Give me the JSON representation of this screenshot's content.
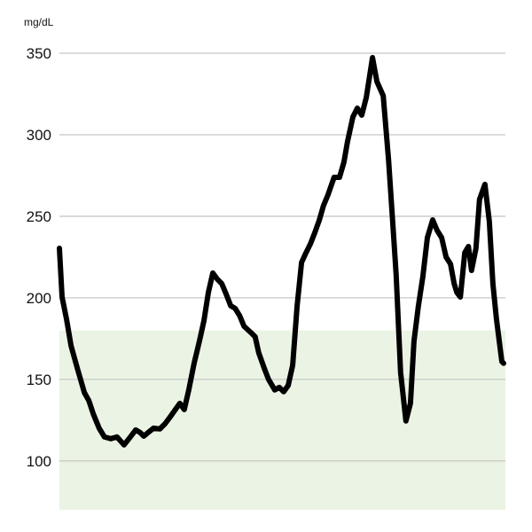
{
  "chart_data": {
    "type": "line",
    "title": "",
    "ylabel": "mg/dL",
    "xlabel": "",
    "ylim": [
      70,
      350
    ],
    "xlim": [
      0,
      100
    ],
    "yticks": [
      100,
      150,
      200,
      250,
      300,
      350
    ],
    "grid": true,
    "target_range": {
      "low": 70,
      "high": 180,
      "color": "#ebf4e4"
    },
    "line_color": "#000000",
    "gridline_color": "#c8c8c8",
    "series": [
      {
        "name": "glucose",
        "points": [
          [
            0,
            230.4
          ],
          [
            0.6,
            200.5
          ],
          [
            1.6,
            187
          ],
          [
            2.6,
            170.7
          ],
          [
            4.0,
            157
          ],
          [
            5.6,
            141.8
          ],
          [
            6.6,
            137
          ],
          [
            7.6,
            128.8
          ],
          [
            8.9,
            120.1
          ],
          [
            10.1,
            114.7
          ],
          [
            11.5,
            113.6
          ],
          [
            12.9,
            114.7
          ],
          [
            14.5,
            109.8
          ],
          [
            15.9,
            114.7
          ],
          [
            17.1,
            119
          ],
          [
            18.1,
            117.4
          ],
          [
            18.9,
            115.2
          ],
          [
            19.9,
            117.4
          ],
          [
            21.1,
            120.1
          ],
          [
            22.5,
            119.6
          ],
          [
            23.7,
            122.8
          ],
          [
            24.9,
            127.2
          ],
          [
            26.0,
            131.5
          ],
          [
            27.0,
            135.3
          ],
          [
            28.0,
            131.5
          ],
          [
            29.0,
            143.5
          ],
          [
            30.2,
            159.8
          ],
          [
            31.4,
            173.4
          ],
          [
            32.4,
            185.9
          ],
          [
            33.4,
            203.3
          ],
          [
            34.4,
            215.2
          ],
          [
            35.4,
            211.4
          ],
          [
            36.4,
            208.7
          ],
          [
            37.4,
            202.2
          ],
          [
            38.4,
            195.1
          ],
          [
            39.4,
            193.5
          ],
          [
            40.4,
            189.1
          ],
          [
            41.4,
            182.6
          ],
          [
            42.9,
            178.8
          ],
          [
            43.9,
            176.1
          ],
          [
            44.7,
            166.3
          ],
          [
            45.9,
            157
          ],
          [
            46.9,
            150
          ],
          [
            48.3,
            143.5
          ],
          [
            49.3,
            145.1
          ],
          [
            50.3,
            142.4
          ],
          [
            51.3,
            146.2
          ],
          [
            52.3,
            158.7
          ],
          [
            53.3,
            195.1
          ],
          [
            54.3,
            221.7
          ],
          [
            55.3,
            227.7
          ],
          [
            56.3,
            233.2
          ],
          [
            57.3,
            240.2
          ],
          [
            58.3,
            247.8
          ],
          [
            59.2,
            256.5
          ],
          [
            60.2,
            263
          ],
          [
            61.6,
            273.9
          ],
          [
            62.8,
            273.9
          ],
          [
            63.8,
            283.2
          ],
          [
            64.6,
            295.7
          ],
          [
            65.8,
            310.9
          ],
          [
            66.8,
            316.3
          ],
          [
            67.8,
            312
          ],
          [
            68.8,
            322.8
          ],
          [
            70.2,
            347.3
          ],
          [
            71.2,
            332.6
          ],
          [
            72.6,
            323.9
          ],
          [
            73.8,
            284.8
          ],
          [
            74.8,
            244
          ],
          [
            75.5,
            214.1
          ],
          [
            76.5,
            154.3
          ],
          [
            77.7,
            124.5
          ],
          [
            78.7,
            135.3
          ],
          [
            79.5,
            173.4
          ],
          [
            80.5,
            195.1
          ],
          [
            81.5,
            213
          ],
          [
            82.5,
            236.9
          ],
          [
            83.7,
            247.8
          ],
          [
            84.7,
            241.3
          ],
          [
            85.7,
            236.9
          ],
          [
            86.7,
            225
          ],
          [
            87.7,
            220.7
          ],
          [
            88.5,
            208.7
          ],
          [
            89.1,
            203.3
          ],
          [
            89.9,
            200.5
          ],
          [
            90.9,
            227.7
          ],
          [
            91.7,
            231.5
          ],
          [
            92.4,
            216.8
          ],
          [
            93.4,
            230.4
          ],
          [
            94.2,
            260.3
          ],
          [
            95.4,
            269.6
          ],
          [
            96.4,
            246.7
          ],
          [
            97.2,
            208.7
          ],
          [
            98.0,
            187
          ],
          [
            99.2,
            160.9
          ],
          [
            99.6,
            159.8
          ]
        ]
      }
    ]
  }
}
